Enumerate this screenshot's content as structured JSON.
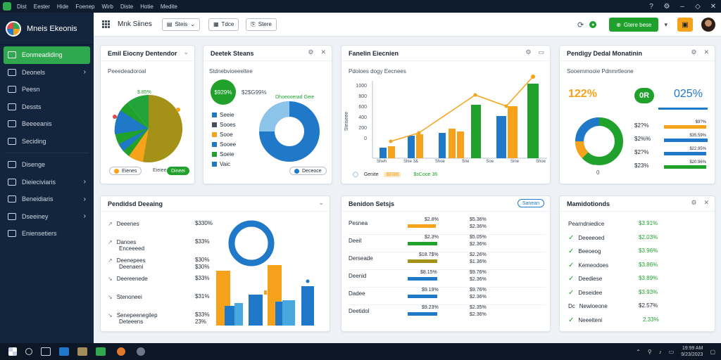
{
  "menubar": {
    "items": [
      "Dist",
      "Eester",
      "Hide",
      "Foenep",
      "Wirb",
      "Diste",
      "Hotie",
      "Medite"
    ]
  },
  "window": {
    "min": "–",
    "restore": "◇",
    "close": "✕",
    "help": "?",
    "settings": "⚙"
  },
  "app": {
    "title": "Mneis Ekeonis"
  },
  "sidebar": {
    "items": [
      {
        "label": "Eonmeadiding",
        "active": true,
        "chevron": false
      },
      {
        "label": "Deonels",
        "chevron": true
      },
      {
        "label": "Peesn",
        "chevron": false
      },
      {
        "label": "Dessts",
        "chevron": false
      },
      {
        "label": "Beeeeanis",
        "chevron": false
      },
      {
        "label": "Seciding",
        "chevron": false
      },
      {
        "label": "Disenge",
        "chevron": false
      },
      {
        "label": "Dieieciviaris",
        "chevron": true
      },
      {
        "label": "Beneidiaris",
        "chevron": true
      },
      {
        "label": "Dseeiney",
        "chevron": true
      },
      {
        "label": "Eniensetiers",
        "chevron": false
      }
    ]
  },
  "toolbar": {
    "title": "Mnk Siines",
    "btn1": "Steis",
    "btn2": "Tdce",
    "btn3": "Stere",
    "green_btn": "Gtere bese"
  },
  "cards": {
    "c1": {
      "title": "Emil Eiocny Dentendor",
      "subtitle": "Peeedeadoroal",
      "pie_value": "$.85%",
      "legend1": "Eienes",
      "legend2": "Eieiee",
      "legend2_btn": "Dineei"
    },
    "c2": {
      "title": "Deetek Steans",
      "subtitle": "Stdnebvioeeeltee",
      "badge": "$929%",
      "value_top": "$2$G99%",
      "value_right": "Dhoeooerad Geie",
      "legend": [
        "Seeie",
        "Sooes",
        "Sooe",
        "Sooee",
        "Soeie",
        "Vaic"
      ],
      "footer_btn": "Deceoce"
    },
    "c3": {
      "title": "Fanelin Eiecnien",
      "subtitle": "Pdoloes dogy Eecnees",
      "yticks": [
        "1000",
        "800",
        "600",
        "400",
        "200",
        "0"
      ],
      "ylabel": "Steiseee",
      "xlabels": [
        "Sheh",
        "Shie 3&",
        "Shoe",
        "Srie",
        "Soe",
        "Sine",
        "Shoe"
      ],
      "footer_a": "Genite",
      "footer_b": "$EBB",
      "footer_c": "$sCooe 36"
    },
    "c4": {
      "title": "Pendigy Dedal Monatinin",
      "subtitle": "Sooemmooie Pdnmrtleone",
      "big_orange": "122%",
      "badge": "0R",
      "big_blue": "025%",
      "rows": [
        "$2?%",
        "$2%%",
        "$2?%",
        "$23%"
      ],
      "row_vals": [
        "$9?%",
        "$35.59%",
        "$22.95%",
        "$20.96%"
      ],
      "zero": "0"
    },
    "c5": {
      "title": "Pendidsd Deeaing",
      "rows": [
        {
          "label": "Deeenes",
          "value": "$330%"
        },
        {
          "label": "Danoes",
          "sub": "Enceeeed",
          "value": "$33%"
        },
        {
          "label": "Deenepees",
          "sub": "Deenaeni",
          "value": "$30%"
        },
        {
          "label": "Deereenede",
          "value": "$33%"
        },
        {
          "label": "Stenoneei",
          "value": "$31%"
        },
        {
          "label": "Senepeenegilep",
          "sub": "Deteeens",
          "value": "$33%"
        }
      ],
      "extra_value": "$30%",
      "extra_value2": "23%"
    },
    "c6": {
      "title": "Benidon Setsjs",
      "btn": "Sanean",
      "rows": [
        {
          "label": "Pesnea",
          "a": "$2.8%",
          "b": "$5.36%",
          "c": "$2.36%"
        },
        {
          "label": "Deeil",
          "a": "$2.3%",
          "b": "$5.05%",
          "c": "$2.36%"
        },
        {
          "label": "Derseade",
          "a": "$18.7$%",
          "b": "$2.26%",
          "c": "$1.36%"
        },
        {
          "label": "Deenid",
          "a": "$8.15%",
          "b": "$9.76%",
          "c": "$2.36%"
        },
        {
          "label": "Dadee",
          "a": "$9.19%",
          "b": "$9.76%",
          "c": "$2.36%"
        },
        {
          "label": "Deetidol",
          "a": "$9.23%",
          "b": "$2.35%",
          "c": "$2.36%"
        }
      ]
    },
    "c7": {
      "title": "Mamidotionds",
      "header_label": "Pearndniedice",
      "header_value": "$3.91%",
      "rows": [
        {
          "label": "Deeeeoed",
          "value": "$2.03%"
        },
        {
          "label": "Beeoeog",
          "value": "$3.96%"
        },
        {
          "label": "Kemeodoes",
          "value": "$3.86%"
        },
        {
          "label": "Deediese",
          "value": "$3.89%"
        },
        {
          "label": "Deseidee",
          "value": "$3.93%"
        },
        {
          "label": "Newioeone",
          "value": "$2.57%",
          "prefix": "Dc"
        },
        {
          "label": "Neeeiteni",
          "value": "2.33%"
        }
      ]
    }
  },
  "taskbar": {
    "tray_time": "19:99 AM",
    "tray_date": "9/23/2023"
  },
  "colors": {
    "green": "#1fa12b",
    "orange": "#f6a21a",
    "blue": "#1f78c8",
    "navy": "#13253c"
  }
}
